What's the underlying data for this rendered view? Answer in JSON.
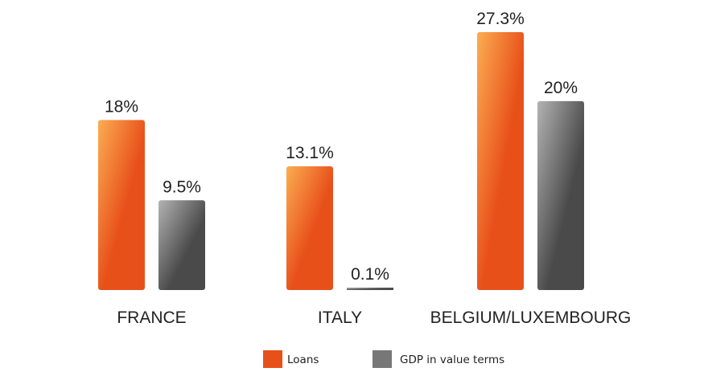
{
  "chart_data": {
    "type": "bar",
    "categories": [
      "FRANCE",
      "ITALY",
      "BELGIUM/LUXEMBOURG"
    ],
    "series": [
      {
        "name": "Loans",
        "values": [
          18,
          13.1,
          27.3
        ],
        "labels": [
          "18%",
          "13.1%",
          "27.3%"
        ],
        "color": "#e8501a",
        "color_light": "#fbad52"
      },
      {
        "name": "GDP in value terms",
        "values": [
          9.5,
          0.1,
          20
        ],
        "labels": [
          "9.5%",
          "0.1%",
          "20%"
        ],
        "color": "#4a4a4a",
        "color_light": "#b3b3b3"
      }
    ],
    "ylim": [
      0,
      27.3
    ],
    "grid": false,
    "legend_position": "bottom-center",
    "title": "",
    "xlabel": "",
    "ylabel": ""
  }
}
